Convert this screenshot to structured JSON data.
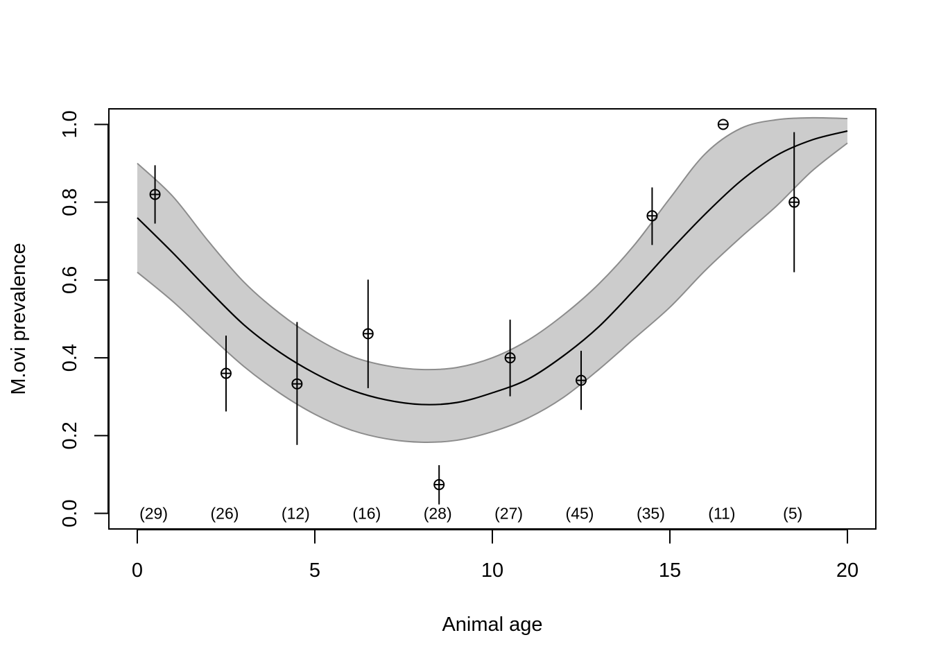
{
  "chart_data": {
    "type": "scatter",
    "title": "",
    "xlabel": "Animal age",
    "ylabel": "M.ovi prevalence",
    "xlim": [
      -0.8,
      20.8
    ],
    "ylim": [
      -0.04,
      1.04
    ],
    "x_ticks": [
      0,
      5,
      10,
      15,
      20
    ],
    "x_tick_labels": [
      "0",
      "5",
      "10",
      "15",
      "20"
    ],
    "y_ticks": [
      0.0,
      0.2,
      0.4,
      0.6,
      0.8,
      1.0
    ],
    "y_tick_labels": [
      "0.0",
      "0.2",
      "0.4",
      "0.6",
      "0.8",
      "1.0"
    ],
    "grid": false,
    "legend": "none",
    "colors": {
      "band_fill": "#cccccc",
      "band_edge": "#8c8c8c",
      "line": "#000000",
      "points": "#000000"
    },
    "observed": [
      {
        "x": 0.5,
        "y": 0.82,
        "lower": 0.745,
        "upper": 0.895,
        "n_label": "(29)"
      },
      {
        "x": 2.5,
        "y": 0.36,
        "lower": 0.262,
        "upper": 0.457,
        "n_label": "(26)"
      },
      {
        "x": 4.5,
        "y": 0.333,
        "lower": 0.176,
        "upper": 0.492,
        "n_label": "(12)"
      },
      {
        "x": 6.5,
        "y": 0.462,
        "lower": 0.322,
        "upper": 0.601,
        "n_label": "(16)"
      },
      {
        "x": 8.5,
        "y": 0.074,
        "lower": 0.023,
        "upper": 0.124,
        "n_label": "(28)"
      },
      {
        "x": 10.5,
        "y": 0.4,
        "lower": 0.301,
        "upper": 0.498,
        "n_label": "(27)"
      },
      {
        "x": 12.5,
        "y": 0.342,
        "lower": 0.266,
        "upper": 0.418,
        "n_label": "(45)"
      },
      {
        "x": 14.5,
        "y": 0.765,
        "lower": 0.69,
        "upper": 0.838,
        "n_label": "(35)"
      },
      {
        "x": 16.5,
        "y": 1.0,
        "lower": 1.0,
        "upper": 1.0,
        "n_label": "(11)"
      },
      {
        "x": 18.5,
        "y": 0.8,
        "lower": 0.62,
        "upper": 0.98,
        "n_label": "(5)"
      }
    ],
    "fit": {
      "x": [
        0,
        1,
        2,
        3,
        4,
        5,
        6,
        7,
        8,
        9,
        10,
        11,
        12,
        13,
        14,
        15,
        16,
        17,
        18,
        19,
        20
      ],
      "y": [
        0.76,
        0.67,
        0.575,
        0.485,
        0.415,
        0.36,
        0.318,
        0.292,
        0.28,
        0.285,
        0.31,
        0.345,
        0.405,
        0.48,
        0.575,
        0.675,
        0.77,
        0.855,
        0.92,
        0.96,
        0.983
      ],
      "lower": [
        0.62,
        0.545,
        0.46,
        0.378,
        0.31,
        0.255,
        0.215,
        0.192,
        0.183,
        0.188,
        0.21,
        0.245,
        0.298,
        0.37,
        0.45,
        0.53,
        0.625,
        0.71,
        0.79,
        0.88,
        0.952
      ],
      "upper": [
        0.9,
        0.815,
        0.7,
        0.595,
        0.515,
        0.452,
        0.405,
        0.38,
        0.37,
        0.375,
        0.4,
        0.445,
        0.51,
        0.59,
        0.69,
        0.81,
        0.925,
        0.99,
        1.012,
        1.017,
        1.015
      ]
    }
  }
}
